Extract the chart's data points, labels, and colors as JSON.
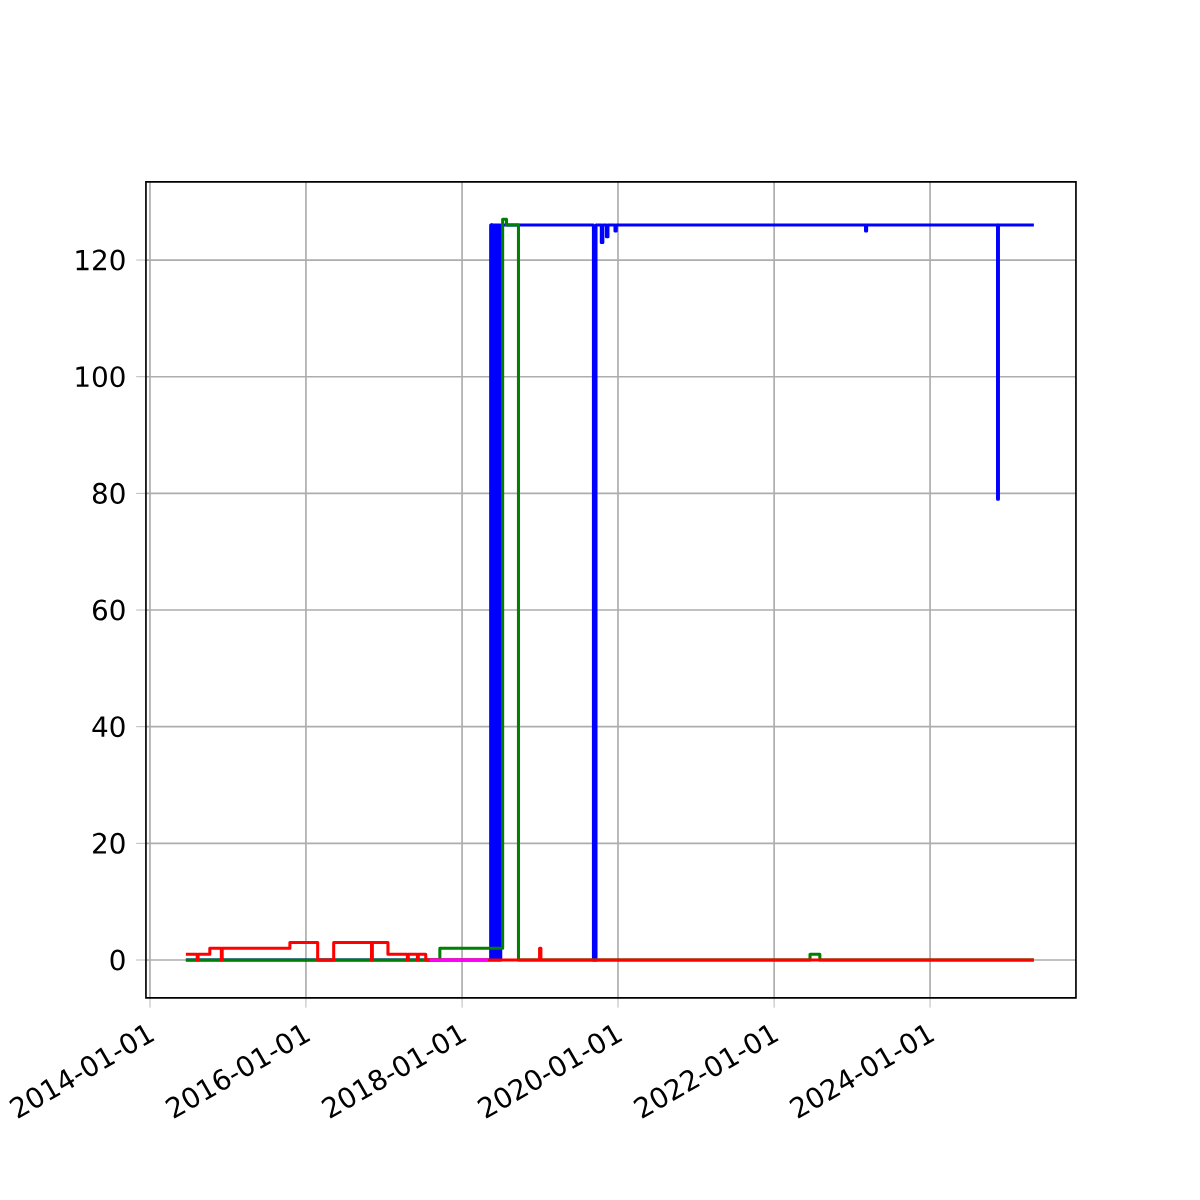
{
  "chart_data": {
    "type": "step",
    "xlim": [
      "2013-12-13",
      "2025-11-14"
    ],
    "ylim": [
      -6.5,
      133.4
    ],
    "xticks": [
      "2014-01-01",
      "2016-01-01",
      "2018-01-01",
      "2020-01-01",
      "2022-01-01",
      "2024-01-01"
    ],
    "yticks": [
      0,
      20,
      40,
      60,
      80,
      100,
      120
    ],
    "grid": true,
    "line_style": "solid",
    "series": [
      {
        "color": "#0000ff",
        "x": [
          "2014-06-18",
          "2018-05-15",
          "2018-05-17",
          "2018-05-19",
          "2018-05-21",
          "2018-05-24",
          "2018-05-27",
          "2018-06-01",
          "2018-06-05",
          "2018-06-10",
          "2018-06-15",
          "2018-06-20",
          "2018-06-25",
          "2018-07-01",
          "2019-09-08",
          "2019-09-20",
          "2019-10-15",
          "2019-10-22",
          "2019-11-08",
          "2019-11-15",
          "2019-12-18",
          "2019-12-24",
          "2023-03-05",
          "2023-03-10",
          "2024-11-12",
          "2024-11-16",
          "2025-05-01"
        ],
        "values": [
          0,
          126,
          0,
          126,
          0,
          126,
          0,
          126,
          0,
          126,
          0,
          126,
          0,
          126,
          0,
          126,
          123,
          126,
          124,
          126,
          125,
          126,
          125,
          126,
          79,
          126,
          126
        ]
      },
      {
        "color": "#008000",
        "x": [
          "2014-06-18",
          "2017-09-19",
          "2018-07-10",
          "2018-07-28",
          "2018-09-22",
          "2022-06-18",
          "2022-08-03",
          "2025-05-01"
        ],
        "values": [
          0,
          2,
          127,
          126,
          0,
          1,
          0,
          0
        ]
      },
      {
        "color": "#ff0000",
        "x": [
          "2014-06-18",
          "2014-08-10",
          "2014-08-14",
          "2014-10-08",
          "2014-12-01",
          "2014-12-05",
          "2015-10-18",
          "2016-02-25",
          "2016-05-10",
          "2016-11-03",
          "2016-11-07",
          "2017-01-19",
          "2017-04-20",
          "2017-04-24",
          "2017-06-06",
          "2017-06-10",
          "2017-07-15",
          "2018-12-30",
          "2019-01-05",
          "2025-05-01"
        ],
        "values": [
          1,
          0,
          1,
          2,
          0,
          2,
          3,
          0,
          3,
          0,
          3,
          1,
          0,
          1,
          0,
          1,
          0,
          2,
          0,
          0
        ]
      },
      {
        "color": "#ff00ff",
        "x": [
          "2017-08-01",
          "2018-05-01"
        ],
        "values": [
          0,
          0
        ]
      }
    ]
  }
}
